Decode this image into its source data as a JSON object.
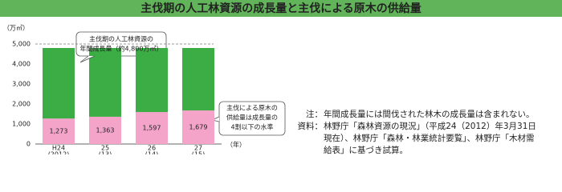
{
  "chart_data": {
    "type": "stacked_bar",
    "title": "主伐期の人工林資源の成長量と主伐による原木の供給量",
    "y_unit": "（万㎥）",
    "x_unit": "（年）",
    "categories": [
      "H24",
      "25",
      "26",
      "27"
    ],
    "category_years": [
      "(2012)",
      "(13)",
      "(14)",
      "(15)"
    ],
    "series": [
      {
        "name": "主伐による原木の供給量",
        "color": "#f4a3c9",
        "values": [
          1273,
          1363,
          1597,
          1679
        ],
        "value_labels": [
          "1,273",
          "1,363",
          "1,597",
          "1,679"
        ]
      },
      {
        "name": "人工林資源の年間成長量",
        "color": "#3cac45",
        "values": [
          3527,
          3437,
          3203,
          3121
        ]
      }
    ],
    "ylim": [
      0,
      5000
    ],
    "yticks": [
      {
        "value": 0,
        "label": "0"
      },
      {
        "value": 1000,
        "label": "1,000"
      },
      {
        "value": 2000,
        "label": "2,000"
      },
      {
        "value": 3000,
        "label": "3,000"
      },
      {
        "value": 4000,
        "label": "4,000"
      },
      {
        "value": 5000,
        "label": "5,000"
      }
    ],
    "annotations": [
      {
        "lines": [
          "主伐期の人工林資源の",
          "年間成長量（約4,800万㎥）"
        ]
      },
      {
        "lines": [
          "主伐による原木の",
          "供給量は成長量の",
          "4割以下の水準"
        ]
      }
    ],
    "notes": [
      {
        "label": "注：",
        "lines": [
          "年間成長量には間伐された林木の成長量は含まれない。"
        ]
      },
      {
        "label": "資料：",
        "lines": [
          "林野庁「森林資源の現況」（平成24（2012）年3月31日",
          "現在）、林野庁「森林・林業統計要覧」、林野庁「木材需",
          "給表」に基づき試算。"
        ]
      }
    ]
  }
}
